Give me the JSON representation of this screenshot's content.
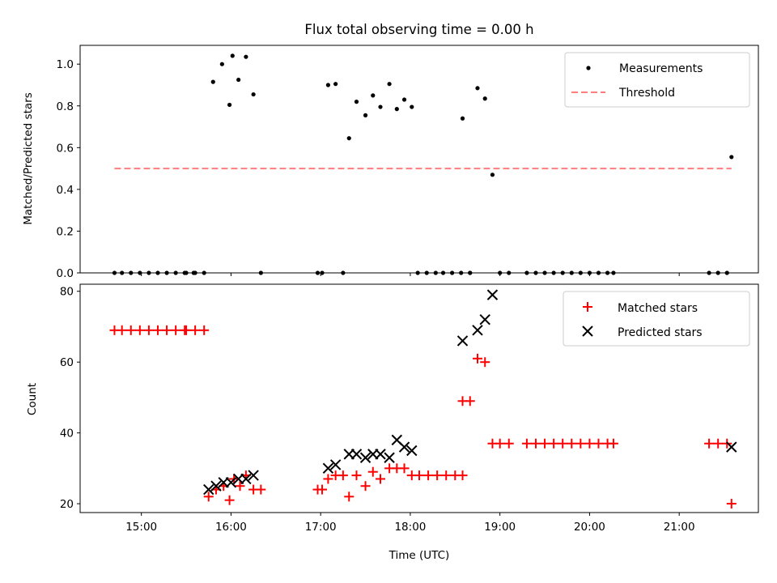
{
  "chart_data": [
    {
      "type": "scatter",
      "title": "Flux total observing time = 0.00 h",
      "xlabel": "",
      "ylabel": "Matched/Predicted stars",
      "ylim": [
        0,
        1.09
      ],
      "yticks": [
        "0.0",
        "0.2",
        "0.4",
        "0.6",
        "0.8",
        "1.0"
      ],
      "legend_position": "top-right",
      "series": [
        {
          "name": "Measurements",
          "color": "#000000",
          "marker": "dot",
          "points": [
            [
              "14:42",
              0
            ],
            [
              "14:47",
              0
            ],
            [
              "14:53",
              0
            ],
            [
              "14:59",
              0
            ],
            [
              "15:05",
              0
            ],
            [
              "15:11",
              0
            ],
            [
              "15:17",
              0
            ],
            [
              "15:23",
              0
            ],
            [
              "15:29",
              0
            ],
            [
              "15:35",
              0
            ],
            [
              "15:30",
              0
            ],
            [
              "15:36",
              0
            ],
            [
              "15:42",
              0
            ],
            [
              "15:48",
              0.915
            ],
            [
              "15:54",
              1.0
            ],
            [
              "15:59",
              0.805
            ],
            [
              "16:01",
              1.04
            ],
            [
              "16:05",
              0.925
            ],
            [
              "16:10",
              1.035
            ],
            [
              "16:15",
              0.855
            ],
            [
              "16:20",
              0
            ],
            [
              "16:58",
              0
            ],
            [
              "17:01",
              0
            ],
            [
              "17:05",
              0.9
            ],
            [
              "17:10",
              0.905
            ],
            [
              "17:15",
              0
            ],
            [
              "17:19",
              0.645
            ],
            [
              "17:24",
              0.82
            ],
            [
              "17:30",
              0.755
            ],
            [
              "17:35",
              0.85
            ],
            [
              "17:40",
              0.795
            ],
            [
              "17:46",
              0.905
            ],
            [
              "17:51",
              0.785
            ],
            [
              "17:56",
              0.83
            ],
            [
              "18:01",
              0.795
            ],
            [
              "18:05",
              0
            ],
            [
              "18:11",
              0
            ],
            [
              "18:17",
              0
            ],
            [
              "18:22",
              0
            ],
            [
              "18:28",
              0
            ],
            [
              "18:34",
              0
            ],
            [
              "18:40",
              0
            ],
            [
              "18:35",
              0.74
            ],
            [
              "18:40",
              0
            ],
            [
              "18:45",
              0.885
            ],
            [
              "18:50",
              0.835
            ],
            [
              "18:55",
              0.47
            ],
            [
              "19:00",
              0
            ],
            [
              "19:06",
              0
            ],
            [
              "19:18",
              0
            ],
            [
              "19:24",
              0
            ],
            [
              "19:30",
              0
            ],
            [
              "19:36",
              0
            ],
            [
              "19:42",
              0
            ],
            [
              "19:48",
              0
            ],
            [
              "19:54",
              0
            ],
            [
              "20:00",
              0
            ],
            [
              "20:06",
              0
            ],
            [
              "20:12",
              0
            ],
            [
              "20:16",
              0
            ],
            [
              "21:20",
              0
            ],
            [
              "21:26",
              0
            ],
            [
              "21:32",
              0
            ],
            [
              "21:35",
              0.555
            ]
          ]
        },
        {
          "name": "Threshold",
          "color": "#ff7f7f",
          "style": "dashed-line",
          "points": [
            [
              "14:42",
              0.5
            ],
            [
              "21:35",
              0.5
            ]
          ]
        }
      ]
    },
    {
      "type": "scatter",
      "title": "",
      "xlabel": "Time (UTC)",
      "ylabel": "Count",
      "ylim": [
        17.5,
        82
      ],
      "yticks": [
        "20",
        "40",
        "60",
        "80"
      ],
      "xticks": [
        "15:00",
        "16:00",
        "17:00",
        "18:00",
        "19:00",
        "20:00",
        "21:00"
      ],
      "legend_position": "top-right",
      "series": [
        {
          "name": "Matched stars",
          "color": "#ff0000",
          "marker": "plus",
          "points": [
            [
              "14:42",
              69
            ],
            [
              "14:47",
              69
            ],
            [
              "14:53",
              69
            ],
            [
              "14:59",
              69
            ],
            [
              "15:05",
              69
            ],
            [
              "15:11",
              69
            ],
            [
              "15:17",
              69
            ],
            [
              "15:23",
              69
            ],
            [
              "15:29",
              69
            ],
            [
              "15:30",
              69
            ],
            [
              "15:36",
              69
            ],
            [
              "15:42",
              69
            ],
            [
              "15:45",
              22
            ],
            [
              "15:50",
              24
            ],
            [
              "15:55",
              25
            ],
            [
              "15:59",
              21
            ],
            [
              "16:02",
              27
            ],
            [
              "16:06",
              25
            ],
            [
              "16:10",
              28
            ],
            [
              "16:15",
              24
            ],
            [
              "16:20",
              24
            ],
            [
              "16:58",
              24
            ],
            [
              "17:01",
              24
            ],
            [
              "17:05",
              27
            ],
            [
              "17:10",
              28
            ],
            [
              "17:15",
              28
            ],
            [
              "17:19",
              22
            ],
            [
              "17:24",
              28
            ],
            [
              "17:30",
              25
            ],
            [
              "17:35",
              29
            ],
            [
              "17:40",
              27
            ],
            [
              "17:46",
              30
            ],
            [
              "17:51",
              30
            ],
            [
              "17:56",
              30
            ],
            [
              "18:01",
              28
            ],
            [
              "18:06",
              28
            ],
            [
              "18:12",
              28
            ],
            [
              "18:18",
              28
            ],
            [
              "18:24",
              28
            ],
            [
              "18:30",
              28
            ],
            [
              "18:35",
              28
            ],
            [
              "18:35",
              49
            ],
            [
              "18:40",
              49
            ],
            [
              "18:45",
              61
            ],
            [
              "18:50",
              60
            ],
            [
              "18:55",
              37
            ],
            [
              "19:00",
              37
            ],
            [
              "19:06",
              37
            ],
            [
              "19:18",
              37
            ],
            [
              "19:24",
              37
            ],
            [
              "19:30",
              37
            ],
            [
              "19:36",
              37
            ],
            [
              "19:42",
              37
            ],
            [
              "19:48",
              37
            ],
            [
              "19:54",
              37
            ],
            [
              "20:00",
              37
            ],
            [
              "20:06",
              37
            ],
            [
              "20:12",
              37
            ],
            [
              "20:16",
              37
            ],
            [
              "21:20",
              37
            ],
            [
              "21:26",
              37
            ],
            [
              "21:32",
              37
            ],
            [
              "21:35",
              20
            ]
          ]
        },
        {
          "name": "Predicted stars",
          "color": "#000000",
          "marker": "x",
          "points": [
            [
              "15:45",
              24
            ],
            [
              "15:50",
              25
            ],
            [
              "15:55",
              26
            ],
            [
              "16:00",
              26
            ],
            [
              "16:05",
              27
            ],
            [
              "16:10",
              27
            ],
            [
              "16:15",
              28
            ],
            [
              "17:05",
              30
            ],
            [
              "17:10",
              31
            ],
            [
              "17:19",
              34
            ],
            [
              "17:24",
              34
            ],
            [
              "17:30",
              33
            ],
            [
              "17:35",
              34
            ],
            [
              "17:40",
              34
            ],
            [
              "17:46",
              33
            ],
            [
              "17:51",
              38
            ],
            [
              "17:56",
              36
            ],
            [
              "18:01",
              35
            ],
            [
              "18:35",
              66
            ],
            [
              "18:45",
              69
            ],
            [
              "18:50",
              72
            ],
            [
              "18:55",
              79
            ],
            [
              "21:35",
              36
            ]
          ]
        }
      ]
    }
  ]
}
